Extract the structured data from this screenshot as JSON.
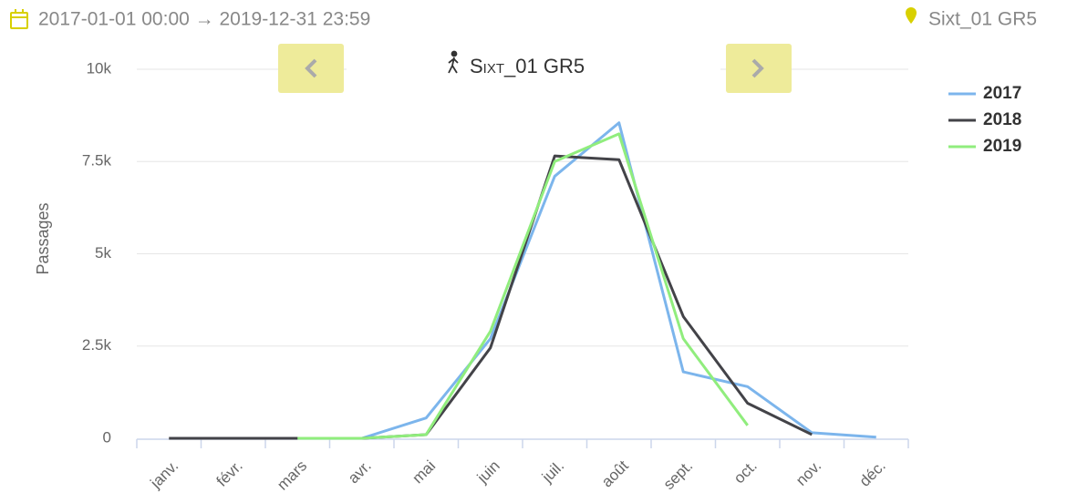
{
  "header": {
    "date_range": "2017-01-01 00:00 → 2019-12-31 23:59",
    "location": "Sixt_01 GR5"
  },
  "chart_data": {
    "type": "line",
    "title": "Sixt_01 GR5",
    "y_label": "Passages",
    "categories": [
      "janv.",
      "févr.",
      "mars",
      "avr.",
      "mai",
      "juin",
      "juil.",
      "août",
      "sept.",
      "oct.",
      "nov.",
      "déc."
    ],
    "series": [
      {
        "name": "2017",
        "color": "#7cb5ec",
        "values": [
          null,
          null,
          null,
          0,
          550,
          2700,
          7100,
          8550,
          1800,
          1400,
          150,
          30
        ]
      },
      {
        "name": "2018",
        "color": "#434348",
        "values": [
          0,
          0,
          0,
          0,
          100,
          2450,
          7650,
          7550,
          3300,
          950,
          100,
          null
        ]
      },
      {
        "name": "2019",
        "color": "#90ed7d",
        "values": [
          null,
          null,
          0,
          0,
          100,
          2900,
          7500,
          8250,
          2700,
          350,
          null,
          null
        ]
      }
    ],
    "ylim": [
      0,
      10000
    ],
    "yticks": [
      0,
      {
        "value": 2500,
        "label": "2.5k"
      },
      {
        "value": 5000,
        "label": "5k"
      },
      {
        "value": 7500,
        "label": "7.5k"
      },
      {
        "value": 10000,
        "label": "10k"
      }
    ],
    "grid": true,
    "legend": "top-right"
  }
}
